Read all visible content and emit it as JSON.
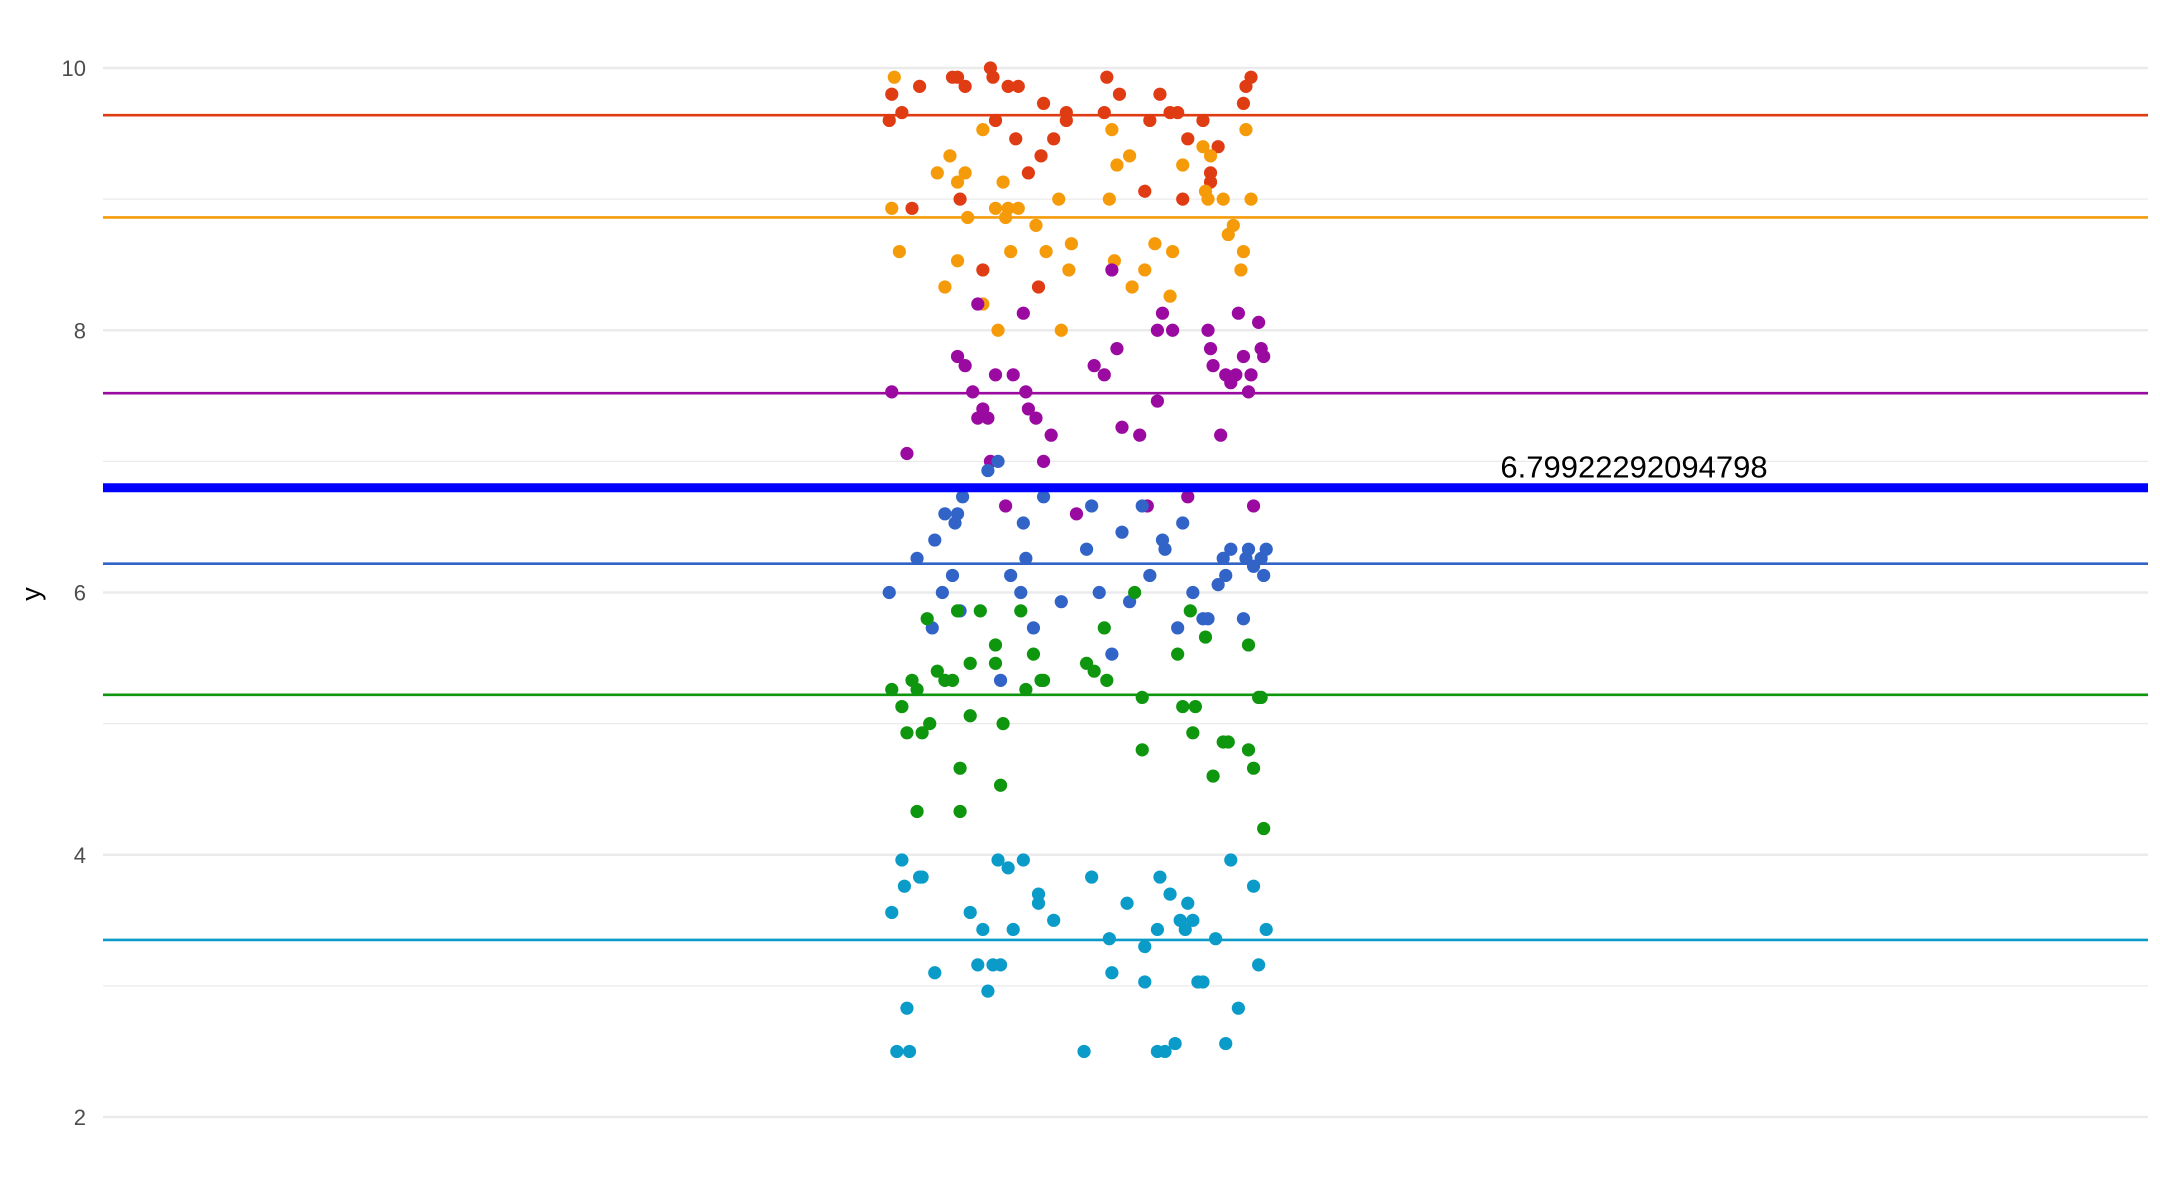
{
  "chart_data": {
    "type": "scatter",
    "title": "",
    "xlabel": "",
    "ylabel": "y",
    "ylim": [
      1.85,
      10.2
    ],
    "y_ticks": [
      2,
      4,
      6,
      8,
      10
    ],
    "grid": "horizontal",
    "legend": "none",
    "annotation": {
      "text": "6.79922292094798",
      "y": 6.79922292094798,
      "color": "#0000ff"
    },
    "colors": {
      "red": "#e03c14",
      "orange": "#f59b0a",
      "purple": "#9b0aa0",
      "blue": "#3264c8",
      "green": "#0f960f",
      "cyan": "#0a9bc8",
      "grid": "#ebebeb",
      "annotation_line": "#0000ff"
    },
    "series": [
      {
        "color": "red",
        "mean": 9.64,
        "points": [
          [
            -0.92,
            9.6
          ],
          [
            -0.91,
            9.8
          ],
          [
            -0.87,
            9.66
          ],
          [
            -0.83,
            8.93
          ],
          [
            -0.8,
            9.86
          ],
          [
            -0.67,
            9.93
          ],
          [
            -0.65,
            9.93
          ],
          [
            -0.64,
            9.0
          ],
          [
            -0.62,
            9.86
          ],
          [
            -0.55,
            8.46
          ],
          [
            -0.52,
            10.0
          ],
          [
            -0.51,
            9.93
          ],
          [
            -0.5,
            9.6
          ],
          [
            -0.45,
            9.86
          ],
          [
            -0.42,
            9.46
          ],
          [
            -0.41,
            9.86
          ],
          [
            -0.37,
            9.2
          ],
          [
            -0.33,
            8.33
          ],
          [
            -0.32,
            9.33
          ],
          [
            -0.31,
            9.73
          ],
          [
            -0.27,
            9.46
          ],
          [
            -0.22,
            9.66
          ],
          [
            -0.22,
            9.6
          ],
          [
            -0.07,
            9.66
          ],
          [
            -0.06,
            9.93
          ],
          [
            -0.01,
            9.8
          ],
          [
            0.09,
            9.06
          ],
          [
            0.11,
            9.6
          ],
          [
            0.15,
            9.8
          ],
          [
            0.19,
            9.66
          ],
          [
            0.22,
            9.66
          ],
          [
            0.24,
            9.0
          ],
          [
            0.26,
            9.46
          ],
          [
            0.32,
            9.6
          ],
          [
            0.35,
            9.2
          ],
          [
            0.35,
            9.13
          ],
          [
            0.38,
            9.4
          ],
          [
            0.48,
            9.73
          ],
          [
            0.49,
            9.86
          ],
          [
            0.51,
            9.93
          ]
        ]
      },
      {
        "color": "orange",
        "mean": 8.86,
        "points": [
          [
            -0.91,
            8.93
          ],
          [
            -0.9,
            9.93
          ],
          [
            -0.88,
            8.6
          ],
          [
            -0.73,
            9.2
          ],
          [
            -0.7,
            8.33
          ],
          [
            -0.68,
            9.33
          ],
          [
            -0.65,
            8.53
          ],
          [
            -0.65,
            9.13
          ],
          [
            -0.62,
            9.2
          ],
          [
            -0.61,
            8.86
          ],
          [
            -0.55,
            9.53
          ],
          [
            -0.55,
            8.2
          ],
          [
            -0.5,
            8.93
          ],
          [
            -0.49,
            8.0
          ],
          [
            -0.47,
            9.13
          ],
          [
            -0.46,
            8.86
          ],
          [
            -0.45,
            8.93
          ],
          [
            -0.44,
            8.6
          ],
          [
            -0.41,
            8.93
          ],
          [
            -0.34,
            8.8
          ],
          [
            -0.3,
            8.6
          ],
          [
            -0.25,
            9.0
          ],
          [
            -0.24,
            8.0
          ],
          [
            -0.21,
            8.46
          ],
          [
            -0.2,
            8.66
          ],
          [
            -0.05,
            9.0
          ],
          [
            -0.04,
            9.53
          ],
          [
            -0.03,
            8.53
          ],
          [
            -0.02,
            9.26
          ],
          [
            0.03,
            9.33
          ],
          [
            0.04,
            8.33
          ],
          [
            0.09,
            8.46
          ],
          [
            0.13,
            8.66
          ],
          [
            0.19,
            8.26
          ],
          [
            0.2,
            8.6
          ],
          [
            0.24,
            9.26
          ],
          [
            0.32,
            9.4
          ],
          [
            0.33,
            9.06
          ],
          [
            0.34,
            9.0
          ],
          [
            0.35,
            9.33
          ],
          [
            0.4,
            9.0
          ],
          [
            0.42,
            8.73
          ],
          [
            0.44,
            8.8
          ],
          [
            0.47,
            8.46
          ],
          [
            0.48,
            8.6
          ],
          [
            0.49,
            9.53
          ],
          [
            0.51,
            9.0
          ]
        ]
      },
      {
        "color": "purple",
        "mean": 7.52,
        "points": [
          [
            -0.91,
            7.53
          ],
          [
            -0.85,
            7.06
          ],
          [
            -0.65,
            7.8
          ],
          [
            -0.62,
            7.73
          ],
          [
            -0.59,
            7.53
          ],
          [
            -0.57,
            7.33
          ],
          [
            -0.57,
            8.2
          ],
          [
            -0.55,
            7.4
          ],
          [
            -0.53,
            7.33
          ],
          [
            -0.52,
            7.0
          ],
          [
            -0.5,
            7.66
          ],
          [
            -0.46,
            6.66
          ],
          [
            -0.43,
            7.66
          ],
          [
            -0.39,
            8.13
          ],
          [
            -0.38,
            7.53
          ],
          [
            -0.37,
            7.4
          ],
          [
            -0.34,
            7.33
          ],
          [
            -0.31,
            7.0
          ],
          [
            -0.28,
            7.2
          ],
          [
            -0.18,
            6.6
          ],
          [
            -0.11,
            7.73
          ],
          [
            -0.07,
            7.66
          ],
          [
            -0.04,
            8.46
          ],
          [
            -0.02,
            7.86
          ],
          [
            0.0,
            7.26
          ],
          [
            0.07,
            7.2
          ],
          [
            0.1,
            6.66
          ],
          [
            0.14,
            8.0
          ],
          [
            0.14,
            7.46
          ],
          [
            0.16,
            8.13
          ],
          [
            0.2,
            8.0
          ],
          [
            0.26,
            6.73
          ],
          [
            0.34,
            8.0
          ],
          [
            0.35,
            7.86
          ],
          [
            0.36,
            7.73
          ],
          [
            0.39,
            7.2
          ],
          [
            0.41,
            7.66
          ],
          [
            0.43,
            7.6
          ],
          [
            0.45,
            7.66
          ],
          [
            0.46,
            8.13
          ],
          [
            0.48,
            7.8
          ],
          [
            0.5,
            7.53
          ],
          [
            0.51,
            7.66
          ],
          [
            0.52,
            6.66
          ],
          [
            0.54,
            8.06
          ],
          [
            0.55,
            7.86
          ],
          [
            0.56,
            7.8
          ]
        ]
      },
      {
        "color": "blue",
        "mean": 6.22,
        "points": [
          [
            -0.92,
            6.0
          ],
          [
            -0.81,
            6.26
          ],
          [
            -0.75,
            5.73
          ],
          [
            -0.74,
            6.4
          ],
          [
            -0.71,
            6.0
          ],
          [
            -0.7,
            6.6
          ],
          [
            -0.67,
            6.13
          ],
          [
            -0.66,
            6.53
          ],
          [
            -0.65,
            6.6
          ],
          [
            -0.64,
            5.86
          ],
          [
            -0.63,
            6.73
          ],
          [
            -0.53,
            6.93
          ],
          [
            -0.49,
            7.0
          ],
          [
            -0.48,
            5.33
          ],
          [
            -0.44,
            6.13
          ],
          [
            -0.4,
            6.0
          ],
          [
            -0.39,
            6.53
          ],
          [
            -0.38,
            6.26
          ],
          [
            -0.35,
            5.73
          ],
          [
            -0.31,
            6.73
          ],
          [
            -0.24,
            5.93
          ],
          [
            -0.14,
            6.33
          ],
          [
            -0.12,
            6.66
          ],
          [
            -0.09,
            6.0
          ],
          [
            -0.04,
            5.53
          ],
          [
            0.0,
            6.46
          ],
          [
            0.03,
            5.93
          ],
          [
            0.08,
            6.66
          ],
          [
            0.11,
            6.13
          ],
          [
            0.16,
            6.4
          ],
          [
            0.17,
            6.33
          ],
          [
            0.22,
            5.73
          ],
          [
            0.24,
            6.53
          ],
          [
            0.28,
            6.0
          ],
          [
            0.32,
            5.8
          ],
          [
            0.34,
            5.8
          ],
          [
            0.38,
            6.06
          ],
          [
            0.4,
            6.26
          ],
          [
            0.41,
            6.13
          ],
          [
            0.43,
            6.33
          ],
          [
            0.48,
            5.8
          ],
          [
            0.49,
            6.26
          ],
          [
            0.5,
            6.33
          ],
          [
            0.52,
            6.2
          ],
          [
            0.55,
            6.26
          ],
          [
            0.56,
            6.13
          ],
          [
            0.57,
            6.33
          ]
        ]
      },
      {
        "color": "green",
        "mean": 5.22,
        "points": [
          [
            -0.91,
            5.26
          ],
          [
            -0.87,
            5.13
          ],
          [
            -0.85,
            4.93
          ],
          [
            -0.83,
            5.33
          ],
          [
            -0.81,
            4.33
          ],
          [
            -0.81,
            5.26
          ],
          [
            -0.79,
            4.93
          ],
          [
            -0.77,
            5.8
          ],
          [
            -0.76,
            5.0
          ],
          [
            -0.73,
            5.4
          ],
          [
            -0.7,
            5.33
          ],
          [
            -0.67,
            5.33
          ],
          [
            -0.65,
            5.86
          ],
          [
            -0.64,
            4.33
          ],
          [
            -0.64,
            4.66
          ],
          [
            -0.6,
            5.06
          ],
          [
            -0.6,
            5.46
          ],
          [
            -0.56,
            5.86
          ],
          [
            -0.5,
            5.46
          ],
          [
            -0.5,
            5.6
          ],
          [
            -0.48,
            4.53
          ],
          [
            -0.47,
            5.0
          ],
          [
            -0.4,
            5.86
          ],
          [
            -0.38,
            5.26
          ],
          [
            -0.35,
            5.53
          ],
          [
            -0.32,
            5.33
          ],
          [
            -0.31,
            5.33
          ],
          [
            -0.14,
            5.46
          ],
          [
            -0.11,
            5.4
          ],
          [
            -0.07,
            5.73
          ],
          [
            -0.06,
            5.33
          ],
          [
            0.05,
            6.0
          ],
          [
            0.08,
            5.2
          ],
          [
            0.08,
            4.8
          ],
          [
            0.22,
            5.53
          ],
          [
            0.24,
            5.13
          ],
          [
            0.27,
            5.86
          ],
          [
            0.28,
            4.93
          ],
          [
            0.29,
            5.13
          ],
          [
            0.33,
            5.66
          ],
          [
            0.36,
            4.6
          ],
          [
            0.4,
            4.86
          ],
          [
            0.42,
            4.86
          ],
          [
            0.5,
            4.8
          ],
          [
            0.5,
            5.6
          ],
          [
            0.52,
            4.66
          ],
          [
            0.54,
            5.2
          ],
          [
            0.55,
            5.2
          ],
          [
            0.56,
            4.2
          ]
        ]
      },
      {
        "color": "cyan",
        "mean": 3.35,
        "points": [
          [
            -0.91,
            3.56
          ],
          [
            -0.89,
            2.5
          ],
          [
            -0.87,
            3.96
          ],
          [
            -0.86,
            3.76
          ],
          [
            -0.85,
            2.83
          ],
          [
            -0.84,
            2.5
          ],
          [
            -0.8,
            3.83
          ],
          [
            -0.79,
            3.83
          ],
          [
            -0.74,
            3.1
          ],
          [
            -0.6,
            3.56
          ],
          [
            -0.57,
            3.16
          ],
          [
            -0.55,
            3.43
          ],
          [
            -0.53,
            2.96
          ],
          [
            -0.51,
            3.16
          ],
          [
            -0.49,
            3.96
          ],
          [
            -0.48,
            3.16
          ],
          [
            -0.45,
            3.9
          ],
          [
            -0.43,
            3.43
          ],
          [
            -0.39,
            3.96
          ],
          [
            -0.33,
            3.63
          ],
          [
            -0.33,
            3.7
          ],
          [
            -0.27,
            3.5
          ],
          [
            -0.15,
            2.5
          ],
          [
            -0.12,
            3.83
          ],
          [
            -0.05,
            3.36
          ],
          [
            -0.04,
            3.1
          ],
          [
            0.02,
            3.63
          ],
          [
            0.09,
            3.03
          ],
          [
            0.09,
            3.3
          ],
          [
            0.14,
            2.5
          ],
          [
            0.14,
            3.43
          ],
          [
            0.15,
            3.83
          ],
          [
            0.17,
            2.5
          ],
          [
            0.19,
            3.7
          ],
          [
            0.21,
            2.56
          ],
          [
            0.23,
            3.5
          ],
          [
            0.25,
            3.43
          ],
          [
            0.26,
            3.63
          ],
          [
            0.28,
            3.5
          ],
          [
            0.3,
            3.03
          ],
          [
            0.32,
            3.03
          ],
          [
            0.37,
            3.36
          ],
          [
            0.41,
            2.56
          ],
          [
            0.43,
            3.96
          ],
          [
            0.46,
            2.83
          ],
          [
            0.52,
            3.76
          ],
          [
            0.54,
            3.16
          ],
          [
            0.57,
            3.43
          ]
        ]
      }
    ]
  }
}
